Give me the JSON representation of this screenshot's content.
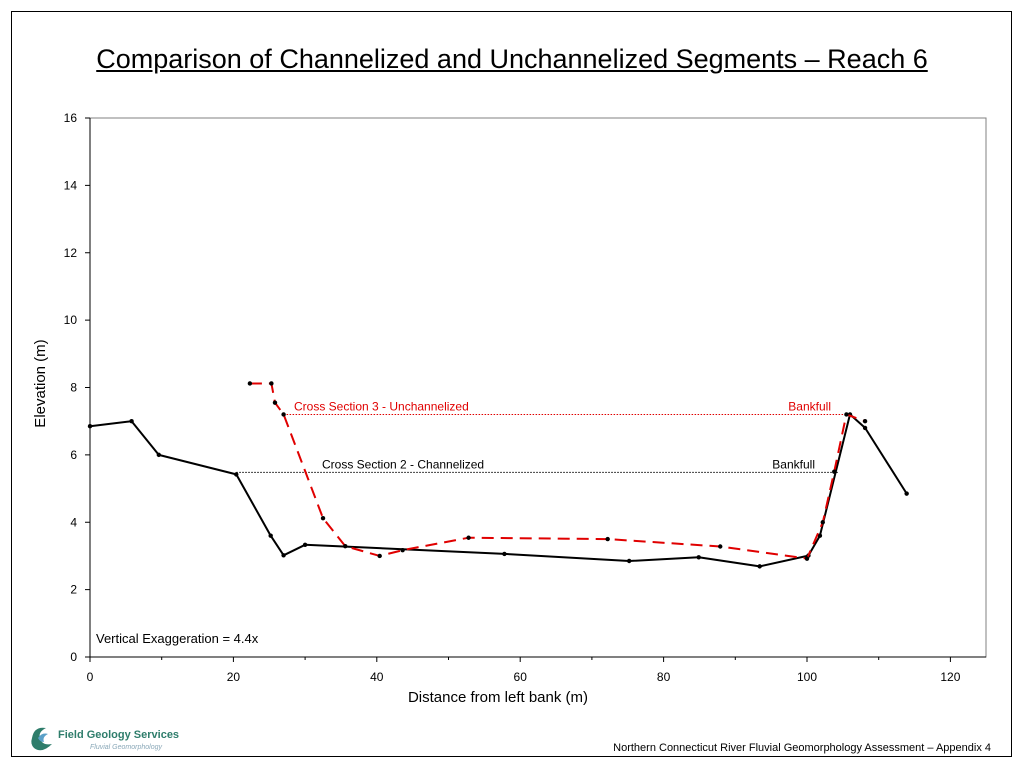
{
  "slide": {
    "title": "Comparison of Channelized and Unchannelized Segments – Reach 6",
    "footer": "Northern Connecticut River Fluvial Geomorphology Assessment – Appendix 4",
    "logo": {
      "name": "Field Geology Services",
      "tagline": "Fluvial Geomorphology",
      "icon": "river-swoosh-icon",
      "colors": [
        "#2e7d6b",
        "#5aa0c8"
      ]
    }
  },
  "chart_data": {
    "type": "line",
    "title": "",
    "xlabel": "Distance from left bank (m)",
    "ylabel": "Elevation (m)",
    "xlim": [
      0,
      125
    ],
    "ylim": [
      0,
      16
    ],
    "xticks": [
      0,
      20,
      40,
      60,
      80,
      100,
      120
    ],
    "yticks": [
      0,
      2,
      4,
      6,
      8,
      10,
      12,
      14,
      16
    ],
    "grid": false,
    "series": [
      {
        "name": "Cross Section 2 - Channelized",
        "color": "#000000",
        "style": "solid",
        "x": [
          0,
          5.8,
          9.6,
          20.4,
          25.2,
          27,
          30,
          57.8,
          75.2,
          84.9,
          93.4,
          100.2,
          101.8,
          106,
          108.1,
          113.9
        ],
        "y": [
          6.85,
          7.0,
          6.0,
          5.42,
          3.6,
          3.02,
          3.33,
          3.06,
          2.85,
          2.96,
          2.69,
          3.01,
          3.6,
          7.2,
          6.8,
          4.85
        ]
      },
      {
        "name": "Cross Section 3 - Unchannelized",
        "color": "#e00000",
        "style": "dashed",
        "x": [
          22.3,
          25.3,
          25.8,
          27,
          32.5,
          35.6,
          40.4,
          43.6,
          52.8,
          72.2,
          87.9,
          100,
          102.2,
          103.8,
          105.5,
          108.1
        ],
        "y": [
          8.12,
          8.12,
          7.55,
          7.2,
          4.12,
          3.29,
          3.0,
          3.17,
          3.54,
          3.5,
          3.28,
          2.92,
          4.0,
          5.5,
          7.2,
          7.0
        ]
      }
    ],
    "bankfull_lines": [
      {
        "series": "Cross Section 3 - Unchannelized",
        "label": "Cross Section 3 - Unchannelized",
        "end_label": "Bankfull",
        "y": 7.2,
        "x_start": 27,
        "x_end": 105.5,
        "color": "#e00000"
      },
      {
        "series": "Cross Section 2 - Channelized",
        "label": "Cross Section 2 - Channelized",
        "end_label": "Bankfull",
        "y": 5.48,
        "x_start": 20.4,
        "x_end": 104.3,
        "color": "#000000"
      }
    ],
    "annotations": [
      {
        "text": "Vertical Exaggeration = 4.4x",
        "position": "bottom-left"
      }
    ]
  }
}
